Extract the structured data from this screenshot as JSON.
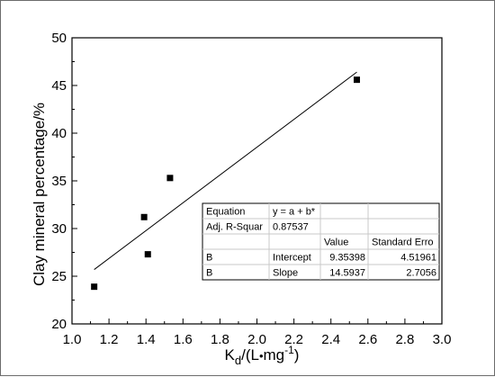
{
  "chart_data": {
    "type": "scatter",
    "xlabel": {
      "main": "K",
      "sub": "d",
      "rest1": "/(L",
      "dot": "•",
      "rest2": "mg",
      "sup": "-1",
      "rest3": ")"
    },
    "ylabel": "Clay mineral percentage/%",
    "xlim": [
      1.0,
      3.0
    ],
    "ylim": [
      20,
      50
    ],
    "x_ticks": [
      "1.0",
      "1.2",
      "1.4",
      "1.6",
      "1.8",
      "2.0",
      "2.2",
      "2.4",
      "2.6",
      "2.8",
      "3.0"
    ],
    "y_ticks": [
      "20",
      "25",
      "30",
      "35",
      "40",
      "45",
      "50"
    ],
    "x_tick_values": [
      1.0,
      1.2,
      1.4,
      1.6,
      1.8,
      2.0,
      2.2,
      2.4,
      2.6,
      2.8,
      3.0
    ],
    "y_tick_values": [
      20,
      25,
      30,
      35,
      40,
      45,
      50
    ],
    "points": [
      {
        "x": 1.12,
        "y": 23.9
      },
      {
        "x": 1.39,
        "y": 31.2
      },
      {
        "x": 1.41,
        "y": 27.3
      },
      {
        "x": 1.53,
        "y": 35.3
      },
      {
        "x": 2.54,
        "y": 45.6
      }
    ],
    "fit_line": {
      "x": [
        1.12,
        2.54
      ],
      "y": [
        25.7,
        46.4
      ]
    },
    "grid": false,
    "legend": "none",
    "colors": {
      "marker": "#000000",
      "line": "#000000",
      "axis": "#000000",
      "frame": "#6b6b6b"
    }
  },
  "fit_table": {
    "rows": [
      [
        "Equation",
        "y = a + b*",
        "",
        ""
      ],
      [
        "Adj. R-Squar",
        "0.87537",
        "",
        ""
      ],
      [
        "",
        "",
        "Value",
        "Standard Erro"
      ],
      [
        "B",
        "Intercept",
        "9.35398",
        "4.51961"
      ],
      [
        "B",
        "Slope",
        "14.5937",
        "2.7056"
      ]
    ]
  }
}
